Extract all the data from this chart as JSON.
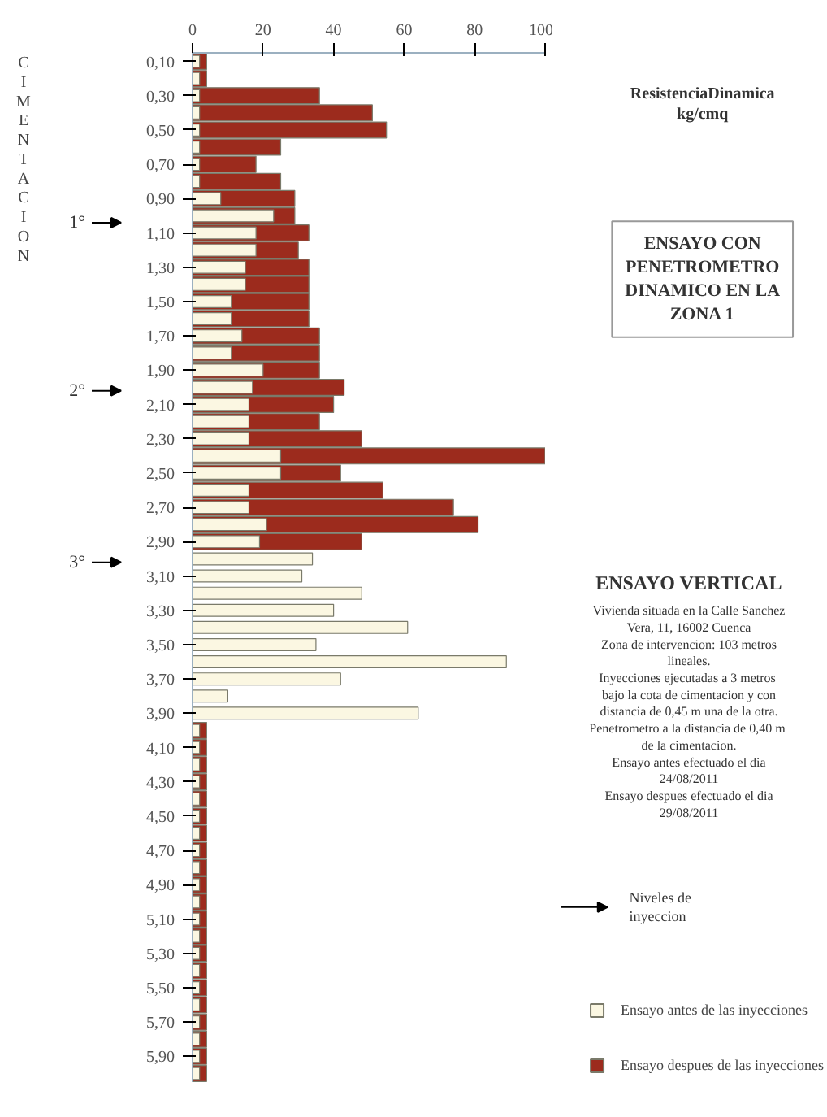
{
  "chart_data": {
    "type": "bar",
    "orientation": "horizontal",
    "title": "ENSAYO CON PENETROMETRO DINAMICO EN LA ZONA 1",
    "subtitle": "ENSAYO VERTICAL",
    "xlabel": "ResistenciaDinamica\nkg/cmq",
    "ylabel": "CIMENTACION",
    "categories": [
      "0,10",
      null,
      "0,30",
      null,
      "0,50",
      null,
      "0,70",
      null,
      "0,90",
      null,
      "1,10",
      null,
      "1,30",
      null,
      "1,50",
      null,
      "1,70",
      null,
      "1,90",
      null,
      "2,10",
      null,
      "2,30",
      null,
      "2,50",
      null,
      "2,70",
      null,
      "2,90",
      null,
      "3,10",
      null,
      "3,30",
      null,
      "3,50",
      null,
      "3,70",
      null,
      "3,90",
      null,
      "4,10",
      null,
      "4,30",
      null,
      "4,50",
      null,
      "4,70",
      null,
      "4,90",
      null,
      "5,10",
      null,
      "5,30",
      null,
      "5,50",
      null,
      "5,70",
      null,
      "5,90",
      null
    ],
    "series": [
      {
        "name": "Ensayo despues de las inyecciones",
        "color": "#9c2b1d",
        "values": [
          4,
          4,
          36,
          51,
          55,
          25,
          18,
          25,
          29,
          29,
          33,
          30,
          33,
          33,
          33,
          33,
          36,
          36,
          36,
          43,
          40,
          36,
          48,
          100,
          42,
          54,
          74,
          81,
          48,
          null,
          null,
          null,
          null,
          null,
          null,
          null,
          null,
          null,
          null,
          4,
          4,
          4,
          4,
          4,
          4,
          4,
          4,
          4,
          4,
          4,
          4,
          4,
          4,
          4,
          4,
          4,
          4,
          4,
          4,
          4
        ]
      },
      {
        "name": "Ensayo antes de las inyecciones",
        "color": "#fbf7e2",
        "values": [
          2,
          2,
          2,
          2,
          2,
          2,
          2,
          2,
          8,
          23,
          18,
          18,
          15,
          15,
          11,
          11,
          14,
          11,
          20,
          17,
          16,
          16,
          16,
          25,
          25,
          16,
          16,
          21,
          19,
          34,
          31,
          48,
          40,
          61,
          35,
          89,
          42,
          10,
          64,
          2,
          2,
          2,
          2,
          2,
          2,
          2,
          2,
          2,
          2,
          2,
          2,
          2,
          2,
          2,
          2,
          2,
          2,
          2,
          2,
          2
        ]
      }
    ],
    "xlim": [
      0,
      100
    ],
    "xticks": [
      0,
      20,
      40,
      60,
      80,
      100
    ],
    "legend": "bottom right",
    "grid": false,
    "annotations": [
      "1°",
      "2°",
      "3°",
      "Niveles de\ninyeccion",
      "Vivienda situada en la Calle Sanchez\nVera, 11, 16002 Cuenca\nZona de intervencion: 103 metros\nlineales.\nInyecciones ejecutadas a  3 metros\nbajo la cota de cimentacion y con\ndistancia de 0,45 m una de la otra.\nPenetrometro  a la distancia de 0,40 m\nde la cimentacion.\nEnsayo antes efectuado el dia\n24/08/2011\nEnsayo despues efectuado el dia\n29/08/2011"
    ]
  }
}
